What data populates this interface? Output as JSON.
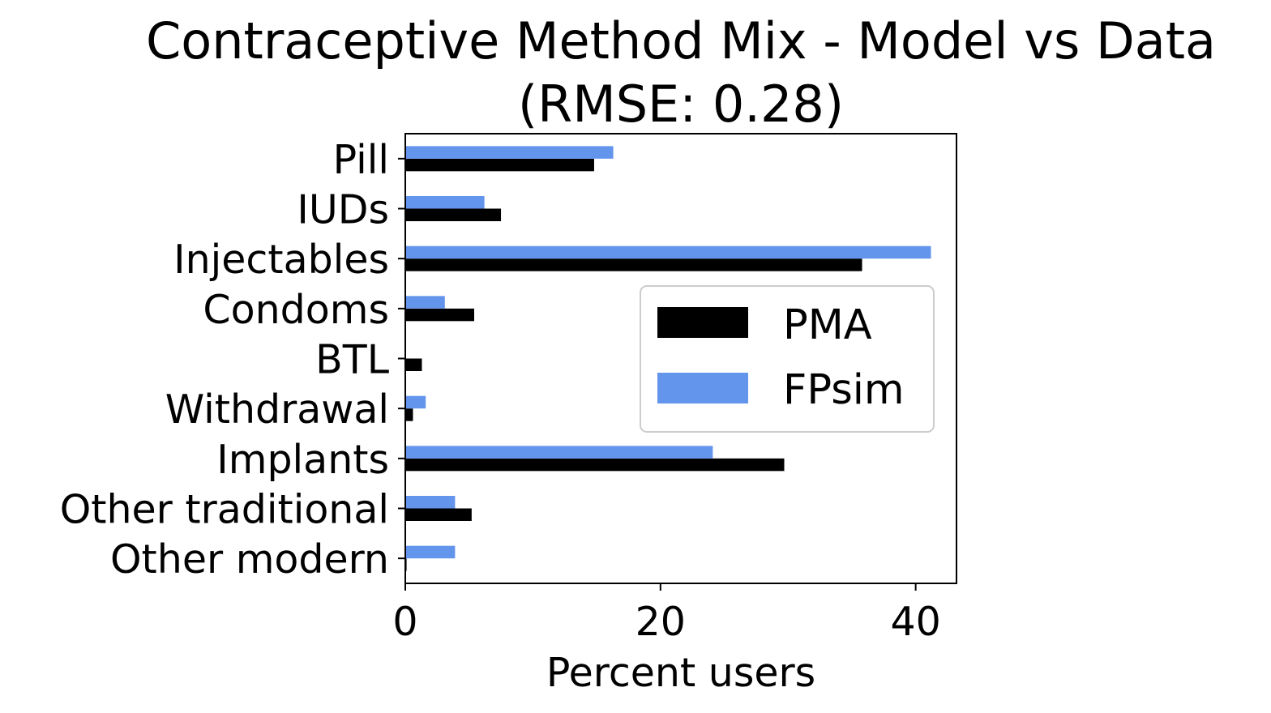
{
  "chart_data": {
    "type": "bar",
    "orientation": "horizontal",
    "title": "Contraceptive Method Mix - Model vs Data",
    "subtitle": "(RMSE: 0.28)",
    "xlabel": "Percent users",
    "ylabel": "",
    "xlim": [
      0,
      43.2
    ],
    "xticks": [
      0,
      20,
      40
    ],
    "grid": false,
    "legend_position": "center-right",
    "categories": [
      "Pill",
      "IUDs",
      "Injectables",
      "Condoms",
      "BTL",
      "Withdrawal",
      "Implants",
      "Other traditional",
      "Other modern"
    ],
    "series": [
      {
        "name": "PMA",
        "color": "#000000",
        "values": [
          14.8,
          7.5,
          35.8,
          5.4,
          1.3,
          0.6,
          29.7,
          5.2,
          0.1
        ]
      },
      {
        "name": "FPsim",
        "color": "#6495ed",
        "values": [
          16.3,
          6.2,
          41.2,
          3.1,
          0.0,
          1.6,
          24.1,
          3.9,
          3.9
        ]
      }
    ]
  }
}
